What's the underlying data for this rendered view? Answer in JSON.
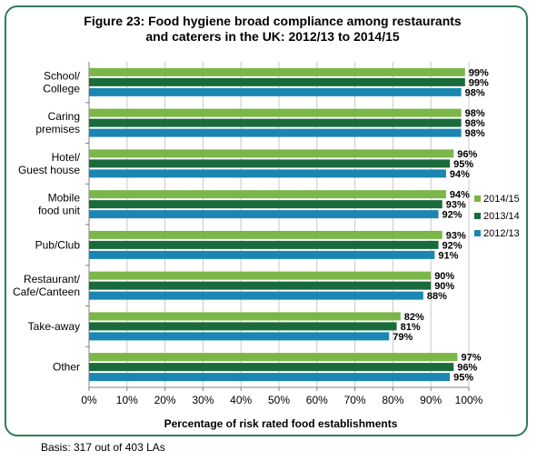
{
  "chart_data": {
    "type": "bar",
    "orientation": "horizontal",
    "title_line1": "Figure 23: Food hygiene broad compliance among restaurants",
    "title_line2": "and caterers in the UK: 2012/13 to 2014/15",
    "xlabel": "Percentage of risk rated food establishments",
    "xlim": [
      0,
      100
    ],
    "x_ticks": [
      "0%",
      "10%",
      "20%",
      "30%",
      "40%",
      "50%",
      "60%",
      "70%",
      "80%",
      "90%",
      "100%"
    ],
    "categories": [
      [
        "School/",
        "College"
      ],
      [
        "Caring",
        "premises"
      ],
      [
        "Hotel/",
        "Guest house"
      ],
      [
        "Mobile",
        "food unit"
      ],
      [
        "Pub/Club"
      ],
      [
        "Restaurant/",
        "Cafe/Canteen"
      ],
      [
        "Take-away"
      ],
      [
        "Other"
      ]
    ],
    "series": [
      {
        "name": "2014/15",
        "color": "#7ab648",
        "values": [
          99,
          98,
          96,
          94,
          93,
          90,
          82,
          97
        ]
      },
      {
        "name": "2013/14",
        "color": "#1a6b3c",
        "values": [
          99,
          98,
          95,
          93,
          92,
          90,
          81,
          96
        ]
      },
      {
        "name": "2012/13",
        "color": "#1b86b1",
        "values": [
          98,
          98,
          94,
          92,
          91,
          88,
          79,
          95
        ]
      }
    ],
    "data_label_suffix": "%",
    "legend_position": "right",
    "grid": true
  },
  "footer": {
    "basis": "Basis: 317 out of 403 LAs"
  }
}
